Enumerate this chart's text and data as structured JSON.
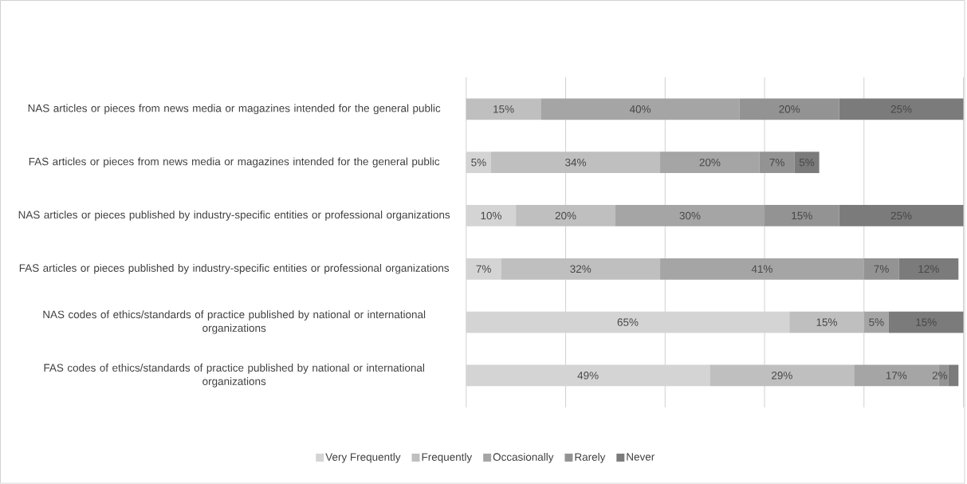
{
  "chart_data": {
    "type": "bar",
    "orientation": "horizontal",
    "stacked": true,
    "categories": [
      "NAS articles or pieces from news media or magazines intended for the general public",
      "FAS articles or pieces from news media or magazines intended for the general public",
      "NAS articles or pieces published by industry-specific entities or professional organizations",
      "FAS articles or pieces published by industry-specific entities or professional organizations",
      "NAS codes of ethics/standards of practice published by national or international organizations",
      "FAS codes of ethics/standards of practice published by national or international organizations"
    ],
    "series": [
      {
        "name": "Very Frequently",
        "color": "#d4d4d4",
        "values": [
          null,
          5,
          10,
          7,
          65,
          49
        ],
        "value_labels": [
          null,
          "5%",
          "10%",
          "7%",
          "65%",
          "49%"
        ]
      },
      {
        "name": "Frequently",
        "color": "#bfbfbf",
        "values": [
          15,
          34,
          20,
          32,
          15,
          29
        ],
        "value_labels": [
          "15%",
          "34%",
          "20%",
          "32%",
          "15%",
          "29%"
        ]
      },
      {
        "name": "Occasionally",
        "color": "#a5a5a5",
        "values": [
          40,
          20,
          30,
          41,
          5,
          17
        ],
        "value_labels": [
          "40%",
          "20%",
          "30%",
          "41%",
          "5%",
          "17%"
        ]
      },
      {
        "name": "Rarely",
        "color": "#939393",
        "values": [
          20,
          7,
          15,
          7,
          null,
          2
        ],
        "value_labels": [
          "20%",
          "7%",
          "15%",
          "7%",
          null,
          "2%"
        ]
      },
      {
        "name": "Never",
        "color": "#7b7b7b",
        "values": [
          25,
          5,
          25,
          12,
          15,
          2
        ],
        "value_labels": [
          "25%",
          "5%",
          "25%",
          "12%",
          "15%",
          null
        ]
      }
    ],
    "xlim": [
      0,
      100
    ],
    "xticks": [
      {
        "value": 0,
        "label": null
      },
      {
        "value": 20,
        "label": null
      },
      {
        "value": 40,
        "label": null
      },
      {
        "value": 60,
        "label": null
      },
      {
        "value": 80,
        "label": null
      },
      {
        "value": 100,
        "label": null
      }
    ],
    "grid": "x",
    "tick_labels": "y",
    "legend": "bottom"
  }
}
